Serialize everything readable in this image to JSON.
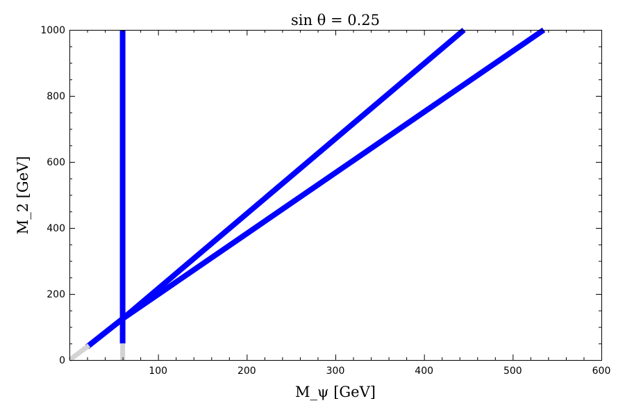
{
  "chart_data": {
    "type": "line",
    "title": "sin θ = 0.25",
    "xlabel": "M_ψ [GeV]",
    "ylabel": "M_2 [GeV]",
    "xlim": [
      0,
      600
    ],
    "ylim": [
      0,
      1000
    ],
    "xticks": [
      100,
      200,
      300,
      400,
      500,
      600
    ],
    "yticks": [
      0,
      200,
      400,
      600,
      800,
      1000
    ],
    "x_minor_step": 20,
    "y_minor_step": 50,
    "grid": false,
    "colors": {
      "allowed": "#0000ff",
      "excluded": "#d3d3d3"
    },
    "series": [
      {
        "style": "allowed",
        "x": [
          20,
          60,
          445
        ],
        "y": [
          40,
          125,
          1000
        ]
      },
      {
        "style": "allowed",
        "x": [
          20,
          60,
          535
        ],
        "y": [
          40,
          125,
          1000
        ]
      },
      {
        "style": "allowed",
        "x": [
          60,
          60
        ],
        "y": [
          50,
          1000
        ]
      },
      {
        "style": "excluded",
        "x": [
          0,
          22
        ],
        "y": [
          0,
          44
        ]
      },
      {
        "style": "excluded",
        "x": [
          60,
          60
        ],
        "y": [
          0,
          50
        ]
      }
    ]
  }
}
